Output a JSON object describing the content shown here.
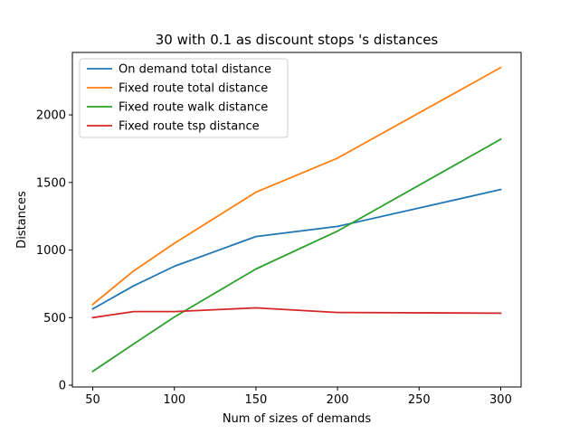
{
  "chart_data": {
    "type": "line",
    "title": "30 with 0.1 as discount stops 's distances",
    "xlabel": "Num of sizes of demands",
    "ylabel": "Distances",
    "x": [
      50,
      75,
      100,
      150,
      200,
      300
    ],
    "xlim": [
      37.5,
      312.5
    ],
    "ylim": [
      -13,
      2462
    ],
    "xticks": [
      50,
      100,
      150,
      200,
      250,
      300
    ],
    "yticks": [
      0,
      500,
      1000,
      1500,
      2000
    ],
    "legend_position": "top-left",
    "grid": false,
    "series": [
      {
        "name": "On demand total distance",
        "color": "#1f77b4",
        "values": [
          565,
          735,
          880,
          1100,
          1175,
          1448
        ]
      },
      {
        "name": "Fixed route total distance",
        "color": "#ff7f0e",
        "values": [
          598,
          845,
          1050,
          1428,
          1680,
          2350
        ]
      },
      {
        "name": "Fixed route walk distance",
        "color": "#2ca02c",
        "values": [
          103,
          305,
          505,
          860,
          1140,
          1820
        ]
      },
      {
        "name": "Fixed route tsp distance",
        "color": "#d62728",
        "values": [
          500,
          545,
          545,
          572,
          538,
          533
        ]
      }
    ]
  }
}
